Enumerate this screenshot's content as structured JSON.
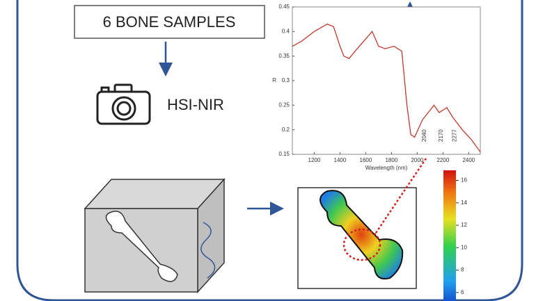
{
  "samples_box": {
    "label": "6 BONE SAMPLES"
  },
  "camera": {
    "label": "HSI-NIR"
  },
  "spectrum_chart": {
    "type": "line",
    "xlabel": "Wavelength (nm)",
    "ylabel": "R",
    "x": [
      1030,
      1100,
      1200,
      1300,
      1350,
      1400,
      1430,
      1470,
      1550,
      1650,
      1700,
      1750,
      1820,
      1880,
      1920,
      1950,
      1980,
      2040,
      2100,
      2130,
      2170,
      2230,
      2277,
      2350,
      2420,
      2490
    ],
    "series": [
      {
        "color": "#c0392b",
        "values": [
          0.37,
          0.38,
          0.4,
          0.415,
          0.41,
          0.37,
          0.35,
          0.345,
          0.37,
          0.4,
          0.37,
          0.365,
          0.37,
          0.36,
          0.25,
          0.19,
          0.185,
          0.22,
          0.24,
          0.25,
          0.235,
          0.245,
          0.225,
          0.2,
          0.18,
          0.155
        ]
      }
    ],
    "xlim": [
      1030,
      2490
    ],
    "ylim": [
      0.15,
      0.45
    ],
    "xticks": [
      1200,
      1400,
      1600,
      1800,
      2000,
      2200,
      2400
    ],
    "yticks": [
      0.15,
      0.2,
      0.25,
      0.3,
      0.35,
      0.4,
      0.45
    ],
    "annotations": [
      "2040",
      "2170",
      "2277"
    ]
  },
  "colorbar": {
    "lim": [
      4.5,
      16.9
    ],
    "ticks": [
      6,
      8,
      10,
      12,
      14,
      16
    ]
  }
}
